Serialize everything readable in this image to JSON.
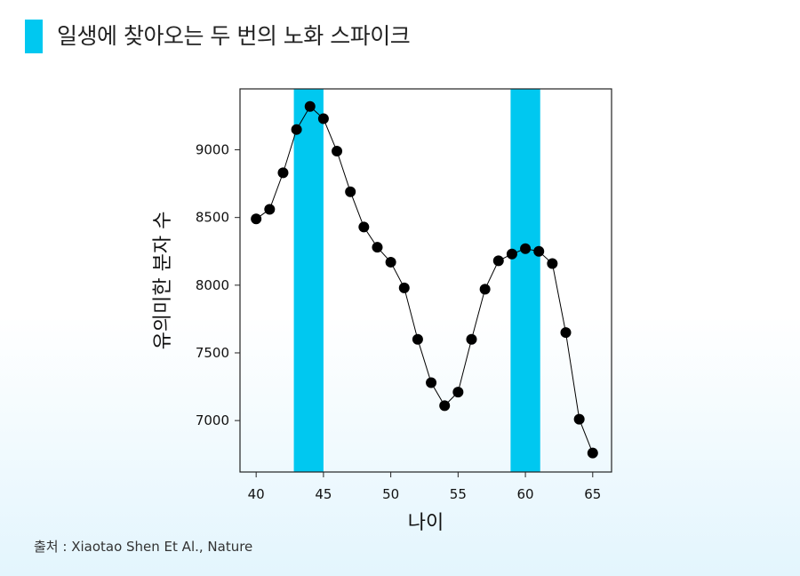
{
  "header": {
    "title": "일생에 찾아오는 두 번의 노화 스파이크",
    "accent_color": "#00c8f0"
  },
  "footer": {
    "source": "출처 : Xiaotao Shen Et Al., Nature"
  },
  "chart_data": {
    "type": "scatter",
    "title": "",
    "xlabel": "나이",
    "ylabel": "유의미한 분자 수",
    "xlim": [
      38.8,
      66.4
    ],
    "ylim": [
      6620,
      9450
    ],
    "xticks": [
      40,
      45,
      50,
      55,
      60,
      65
    ],
    "yticks": [
      7000,
      7500,
      8000,
      8500,
      9000
    ],
    "grid": false,
    "marker_color": "#000000",
    "line_color": "#000000",
    "highlight_color": "#00c8f0",
    "highlight_bands": [
      {
        "x_start": 42.8,
        "x_end": 45.0
      },
      {
        "x_start": 58.9,
        "x_end": 61.1
      }
    ],
    "series": [
      {
        "x": [
          40,
          41,
          42,
          43,
          44,
          45,
          46,
          47,
          48,
          49,
          50,
          51,
          52,
          53,
          54,
          55,
          56,
          57,
          58,
          59,
          60,
          61,
          62,
          63,
          64,
          65
        ],
        "y": [
          8490,
          8560,
          8830,
          9150,
          9320,
          9230,
          8990,
          8690,
          8430,
          8280,
          8170,
          7980,
          7600,
          7280,
          7110,
          7210,
          7600,
          7970,
          8180,
          8230,
          8270,
          8250,
          8160,
          7650,
          7010,
          6760
        ]
      }
    ]
  }
}
